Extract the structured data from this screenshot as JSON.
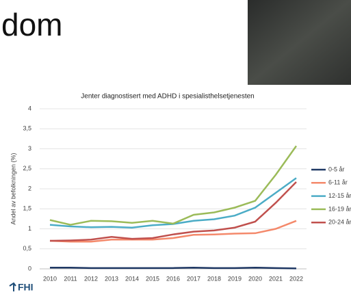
{
  "heading": "dom",
  "logo": "FHI",
  "chart_data": {
    "type": "line",
    "title": "Jenter diagnostisert med ADHD i spesialisthelsetjenesten",
    "ylabel": "Andel av befolkningen (%)",
    "categories": [
      "2010",
      "2011",
      "2012",
      "2013",
      "2014",
      "2015",
      "2016",
      "2017",
      "2018",
      "2019",
      "2020",
      "2021",
      "2022"
    ],
    "series": [
      {
        "name": "0-5 år",
        "color": "#1f3864",
        "values": [
          0.03,
          0.03,
          0.02,
          0.02,
          0.02,
          0.02,
          0.02,
          0.03,
          0.02,
          0.02,
          0.03,
          0.02,
          0.01
        ]
      },
      {
        "name": "6-11 år",
        "color": "#f4896b",
        "values": [
          0.7,
          0.68,
          0.68,
          0.73,
          0.73,
          0.73,
          0.77,
          0.85,
          0.86,
          0.88,
          0.89,
          1.0,
          1.2
        ]
      },
      {
        "name": "12-15 år",
        "color": "#4bacc6",
        "values": [
          1.1,
          1.06,
          1.04,
          1.05,
          1.03,
          1.09,
          1.12,
          1.2,
          1.24,
          1.33,
          1.53,
          1.9,
          2.27
        ]
      },
      {
        "name": "16-19 år",
        "color": "#9bbb59",
        "values": [
          1.22,
          1.1,
          1.2,
          1.19,
          1.15,
          1.2,
          1.13,
          1.35,
          1.41,
          1.53,
          1.7,
          2.35,
          3.07
        ]
      },
      {
        "name": "20-24 år",
        "color": "#c0504d",
        "values": [
          0.7,
          0.71,
          0.73,
          0.8,
          0.75,
          0.77,
          0.86,
          0.93,
          0.96,
          1.03,
          1.18,
          1.65,
          2.17
        ]
      }
    ],
    "ylim": [
      0,
      4
    ],
    "yticks": [
      0,
      {
        "value": 0.5,
        "label": "0,5"
      },
      1,
      {
        "value": 1.5,
        "label": "1,5"
      },
      2,
      {
        "value": 2.5,
        "label": "2,5"
      },
      3,
      {
        "value": 3.5,
        "label": "3,5"
      },
      4
    ],
    "grid": true,
    "legend": "right"
  }
}
